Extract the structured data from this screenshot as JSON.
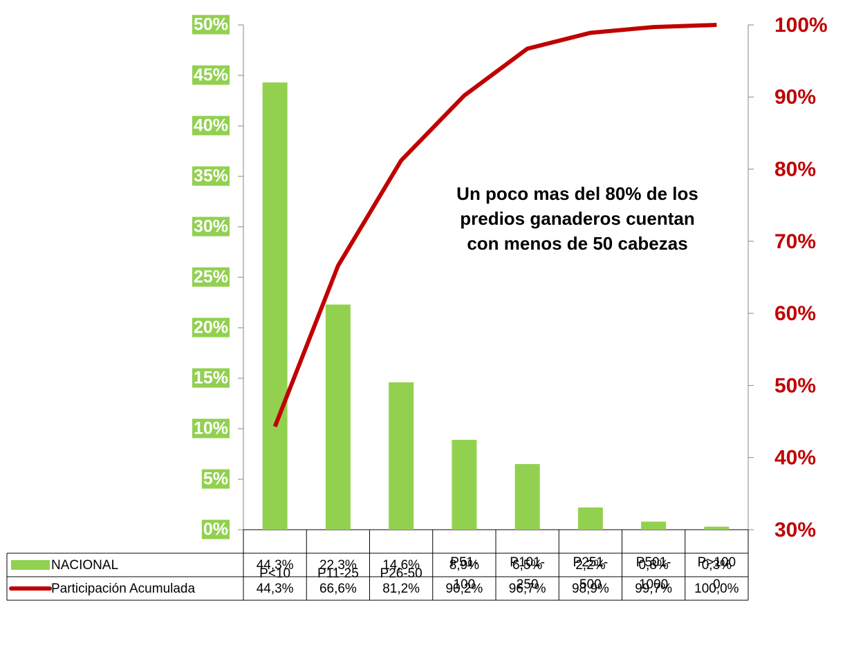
{
  "chart_data": {
    "type": "bar",
    "categories": [
      "P<10",
      "P11-25",
      "P26-50",
      "P51-100",
      "P101-250",
      "P251-500",
      "P501-1000",
      "P>1000"
    ],
    "series": [
      {
        "name": "NACIONAL",
        "type": "bar",
        "color": "#92d050",
        "values": [
          44.3,
          22.3,
          14.6,
          8.9,
          6.5,
          2.2,
          0.8,
          0.3
        ],
        "value_labels": [
          "44,3%",
          "22,3%",
          "14,6%",
          "8,9%",
          "6,5%",
          "2,2%",
          "0,8%",
          "0,3%"
        ]
      },
      {
        "name": "Participación Acumulada",
        "type": "line",
        "axis": "y2",
        "color": "#c00000",
        "values": [
          44.3,
          66.6,
          81.2,
          90.2,
          96.7,
          98.9,
          99.7,
          100.0
        ],
        "value_labels": [
          "44,3%",
          "66,6%",
          "81,2%",
          "90,2%",
          "96,7%",
          "98,9%",
          "99,7%",
          "100,0%"
        ]
      }
    ],
    "ylim": [
      0,
      50
    ],
    "yticks": [
      {
        "value": 0,
        "label": "0%"
      },
      {
        "value": 5,
        "label": "5%"
      },
      {
        "value": 10,
        "label": "10%"
      },
      {
        "value": 15,
        "label": "15%"
      },
      {
        "value": 20,
        "label": "20%"
      },
      {
        "value": 25,
        "label": "25%"
      },
      {
        "value": 30,
        "label": "30%"
      },
      {
        "value": 35,
        "label": "35%"
      },
      {
        "value": 40,
        "label": "40%"
      },
      {
        "value": 45,
        "label": "45%"
      },
      {
        "value": 50,
        "label": "50%"
      }
    ],
    "y2lim": [
      30,
      100
    ],
    "y2ticks": [
      {
        "value": 30,
        "label": "30%"
      },
      {
        "value": 40,
        "label": "40%"
      },
      {
        "value": 50,
        "label": "50%"
      },
      {
        "value": 60,
        "label": "60%"
      },
      {
        "value": 70,
        "label": "70%"
      },
      {
        "value": 80,
        "label": "80%"
      },
      {
        "value": 90,
        "label": "90%"
      },
      {
        "value": 100,
        "label": "100%"
      }
    ],
    "annotation": "Un poco mas del 80% de los predios ganaderos cuentan con menos de 50 cabezas",
    "data_table": true
  }
}
